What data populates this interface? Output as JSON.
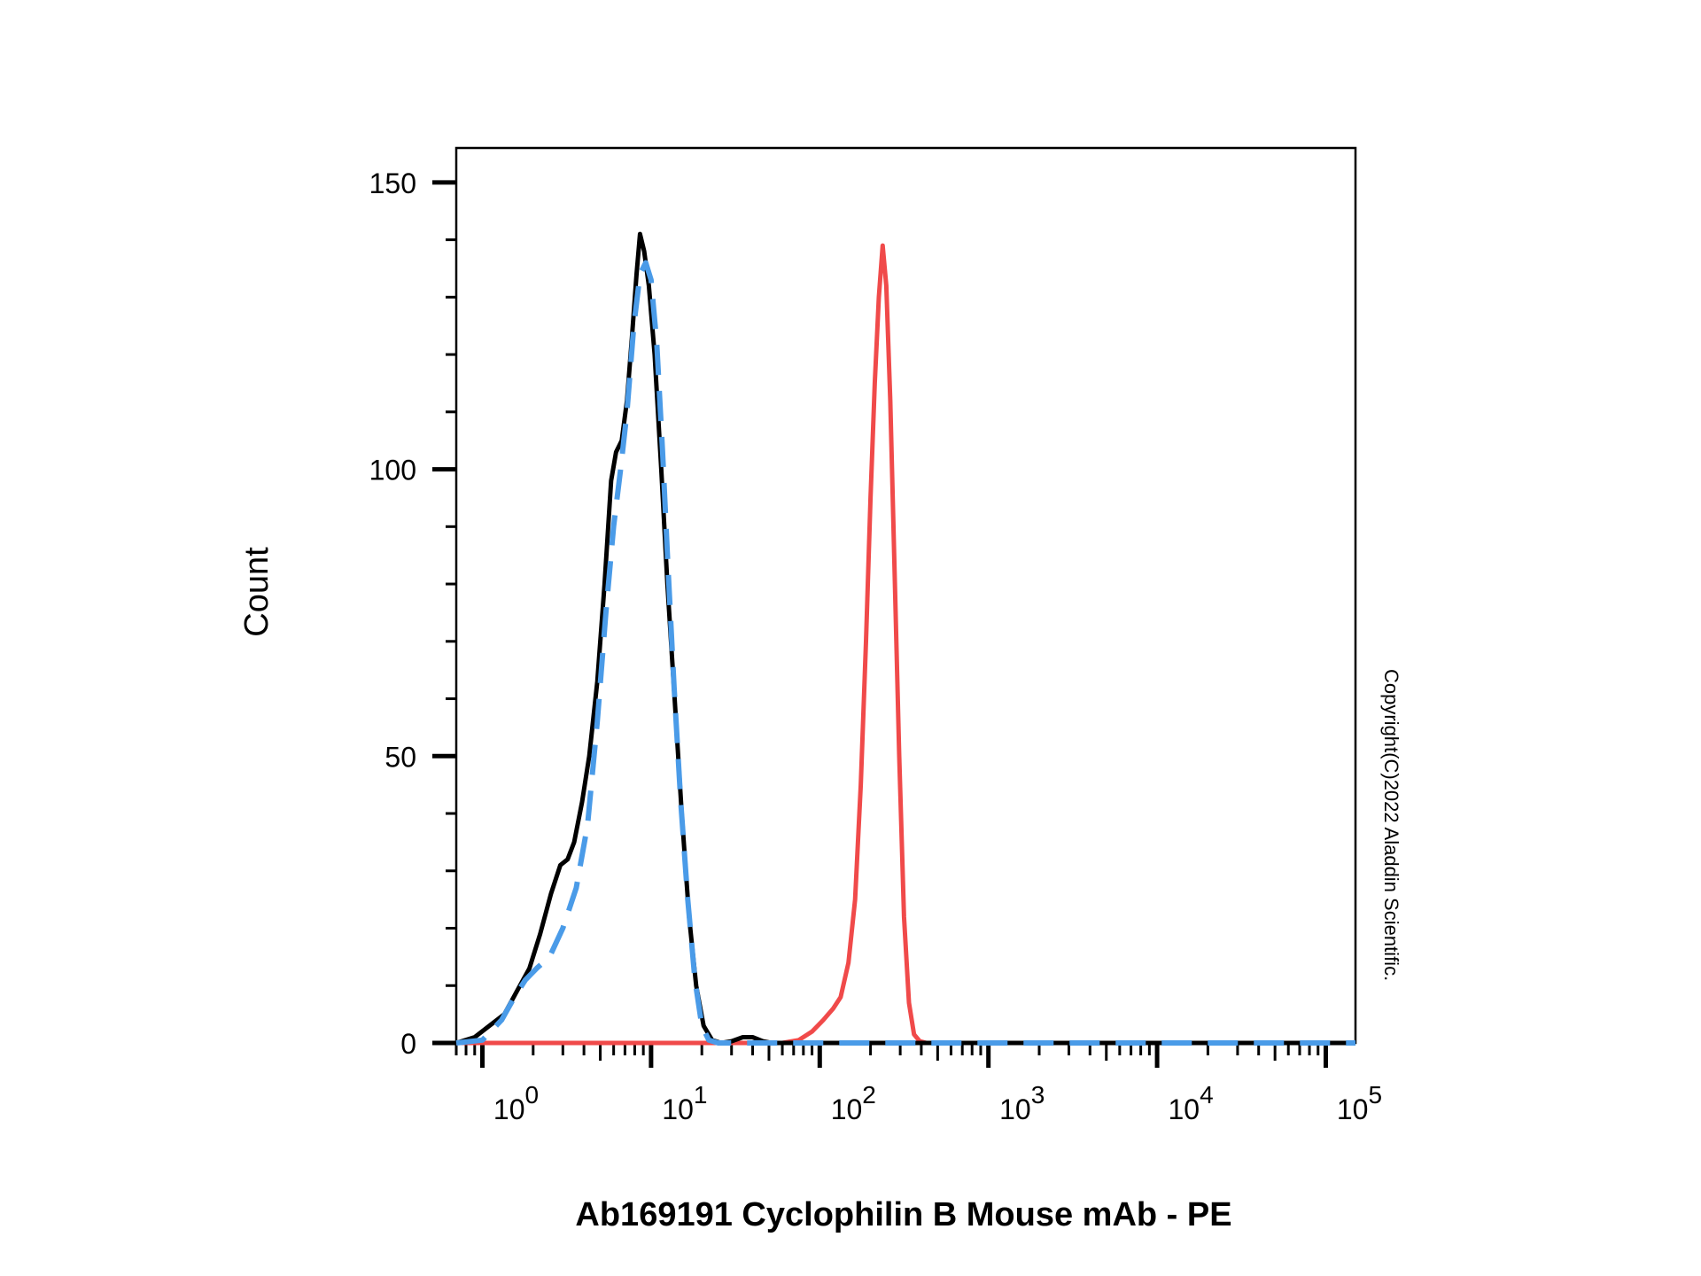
{
  "chart_data": {
    "type": "line",
    "title": "",
    "xlabel": "Ab169191 Cyclophilin B Mouse mAb - PE",
    "ylabel": "Count",
    "x_scale": "log",
    "xlim": [
      0.7,
      150000
    ],
    "ylim": [
      0,
      156
    ],
    "y_ticks": [
      0,
      50,
      100,
      150
    ],
    "y_tick_labels": [
      "0",
      "50",
      "100",
      "150"
    ],
    "x_ticks": [
      1,
      10,
      100,
      1000,
      10000,
      100000
    ],
    "x_tick_labels": [
      {
        "base": "10",
        "exp": "0"
      },
      {
        "base": "10",
        "exp": "1"
      },
      {
        "base": "10",
        "exp": "2"
      },
      {
        "base": "10",
        "exp": "3"
      },
      {
        "base": "10",
        "exp": "4"
      },
      {
        "base": "10",
        "exp": "5"
      }
    ],
    "grid": false,
    "legend": "none",
    "series": [
      {
        "color": "#000000",
        "style": "solid",
        "points": [
          [
            0.7,
            0
          ],
          [
            0.9,
            1
          ],
          [
            1.1,
            3
          ],
          [
            1.35,
            5
          ],
          [
            1.6,
            9
          ],
          [
            1.9,
            13
          ],
          [
            2.2,
            19
          ],
          [
            2.55,
            26
          ],
          [
            2.9,
            31
          ],
          [
            3.2,
            32
          ],
          [
            3.5,
            35
          ],
          [
            3.9,
            42
          ],
          [
            4.3,
            50
          ],
          [
            4.8,
            63
          ],
          [
            5.3,
            80
          ],
          [
            5.8,
            98
          ],
          [
            6.2,
            103
          ],
          [
            6.7,
            105
          ],
          [
            7.2,
            112
          ],
          [
            7.7,
            123
          ],
          [
            8.2,
            134
          ],
          [
            8.6,
            141
          ],
          [
            9.1,
            138
          ],
          [
            9.7,
            132
          ],
          [
            10.5,
            120
          ],
          [
            11.5,
            100
          ],
          [
            12.5,
            80
          ],
          [
            13.8,
            60
          ],
          [
            15.2,
            40
          ],
          [
            16.8,
            22
          ],
          [
            18.5,
            10
          ],
          [
            20.5,
            3
          ],
          [
            23,
            0.5
          ],
          [
            26,
            0
          ],
          [
            30,
            0.3
          ],
          [
            35,
            1
          ],
          [
            40,
            1
          ],
          [
            46,
            0.3
          ],
          [
            52,
            0
          ],
          [
            150000,
            0
          ]
        ]
      },
      {
        "color": "#4a9be8",
        "style": "dashed",
        "points": [
          [
            0.7,
            0
          ],
          [
            1.0,
            0.5
          ],
          [
            1.3,
            4
          ],
          [
            1.55,
            8
          ],
          [
            1.8,
            11
          ],
          [
            2.1,
            13
          ],
          [
            2.5,
            15
          ],
          [
            3.0,
            20
          ],
          [
            3.6,
            27
          ],
          [
            4.2,
            38
          ],
          [
            4.8,
            56
          ],
          [
            5.4,
            75
          ],
          [
            6.0,
            90
          ],
          [
            6.6,
            100
          ],
          [
            7.2,
            110
          ],
          [
            7.9,
            125
          ],
          [
            8.6,
            134
          ],
          [
            9.3,
            136
          ],
          [
            10.0,
            133
          ],
          [
            10.8,
            122
          ],
          [
            11.7,
            103
          ],
          [
            12.6,
            83
          ],
          [
            13.7,
            62
          ],
          [
            15.0,
            42
          ],
          [
            16.5,
            25
          ],
          [
            18.2,
            11
          ],
          [
            20,
            3
          ],
          [
            22,
            0.5
          ],
          [
            25,
            0
          ],
          [
            150000,
            0
          ]
        ]
      },
      {
        "color": "#f04a4a",
        "style": "solid",
        "points": [
          [
            0.7,
            0
          ],
          [
            60,
            0
          ],
          [
            75,
            0.5
          ],
          [
            90,
            2
          ],
          [
            105,
            4
          ],
          [
            120,
            6
          ],
          [
            133,
            8
          ],
          [
            148,
            14
          ],
          [
            162,
            25
          ],
          [
            175,
            45
          ],
          [
            188,
            70
          ],
          [
            200,
            95
          ],
          [
            212,
            115
          ],
          [
            224,
            130
          ],
          [
            236,
            139
          ],
          [
            248,
            132
          ],
          [
            262,
            112
          ],
          [
            278,
            82
          ],
          [
            296,
            50
          ],
          [
            316,
            22
          ],
          [
            338,
            7
          ],
          [
            362,
            1.5
          ],
          [
            392,
            0.3
          ],
          [
            430,
            0
          ],
          [
            150000,
            0
          ]
        ]
      }
    ],
    "annotations": [
      "Copyright(C)2022 Aladdin Scientific."
    ]
  }
}
